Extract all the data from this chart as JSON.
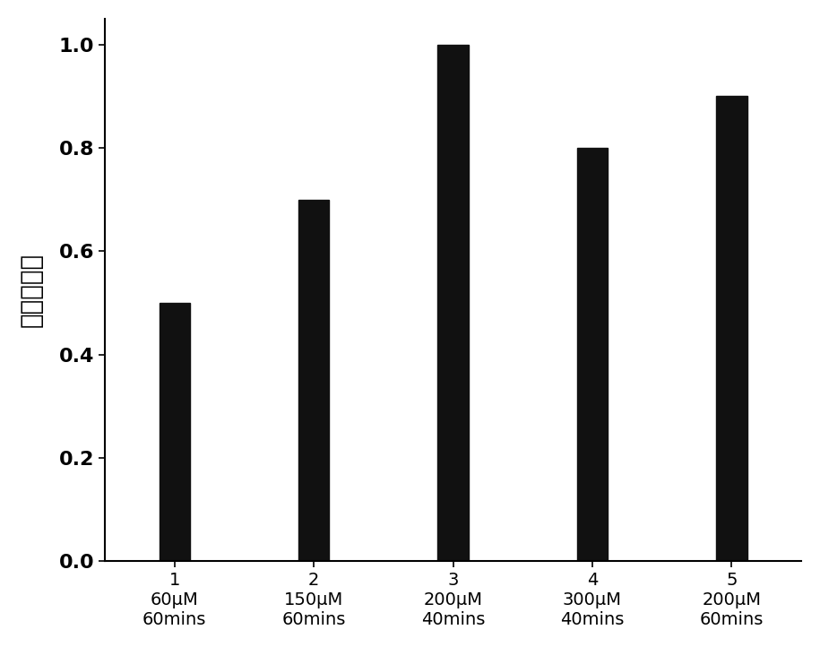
{
  "categories": [
    "1\n60μM\n60mins",
    "2\n150μM\n60mins",
    "3\n200μM\n40mins",
    "4\n300μM\n40mins",
    "5\n200μM\n60mins"
  ],
  "values": [
    0.5,
    0.7,
    1.0,
    0.8,
    0.9
  ],
  "bar_color": "#111111",
  "ylabel": "相对荧光値",
  "ylim": [
    0.0,
    1.05
  ],
  "yticks": [
    0.0,
    0.2,
    0.4,
    0.6,
    0.8,
    1.0
  ],
  "background_color": "#ffffff",
  "bar_width": 0.22,
  "ylabel_fontsize": 20,
  "tick_fontsize": 16,
  "xtick_fontsize": 14
}
